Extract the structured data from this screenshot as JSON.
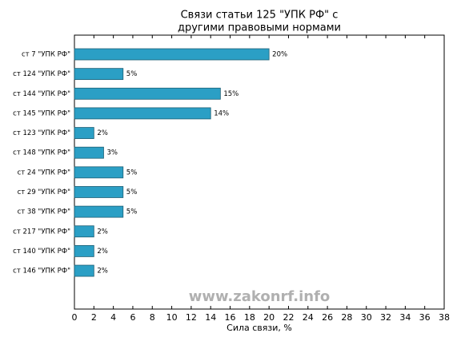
{
  "chart_data": {
    "type": "barh",
    "title": [
      "Связи статьи 125 \"УПК РФ\" с",
      "другими правовыми нормами"
    ],
    "x_label": "Сила связи, %",
    "annotation": "www.zakonrf.info",
    "categories": [
      "ст 7 \"УПК РФ\"",
      "ст 124 \"УПК РФ\"",
      "ст 144 \"УПК РФ\"",
      "ст 145 \"УПК РФ\"",
      "ст 123 \"УПК РФ\"",
      "ст 148 \"УПК РФ\"",
      "ст 24 \"УПК РФ\"",
      "ст 29 \"УПК РФ\"",
      "ст 38 \"УПК РФ\"",
      "ст 217 \"УПК РФ\"",
      "ст 140 \"УПК РФ\"",
      "ст 146 \"УПК РФ\""
    ],
    "values": [
      20,
      5,
      15,
      14,
      2,
      3,
      5,
      5,
      5,
      2,
      2,
      2
    ],
    "value_labels": [
      "20%",
      "5%",
      "15%",
      "14%",
      "2%",
      "3%",
      "5%",
      "5%",
      "5%",
      "2%",
      "2%",
      "2%"
    ],
    "color": "#2b9fc5",
    "xlim": [
      0,
      38
    ],
    "xticks": [
      0,
      2,
      4,
      6,
      8,
      10,
      12,
      14,
      16,
      18,
      20,
      22,
      24,
      26,
      28,
      30,
      32,
      34,
      36,
      38
    ],
    "grid": false
  }
}
